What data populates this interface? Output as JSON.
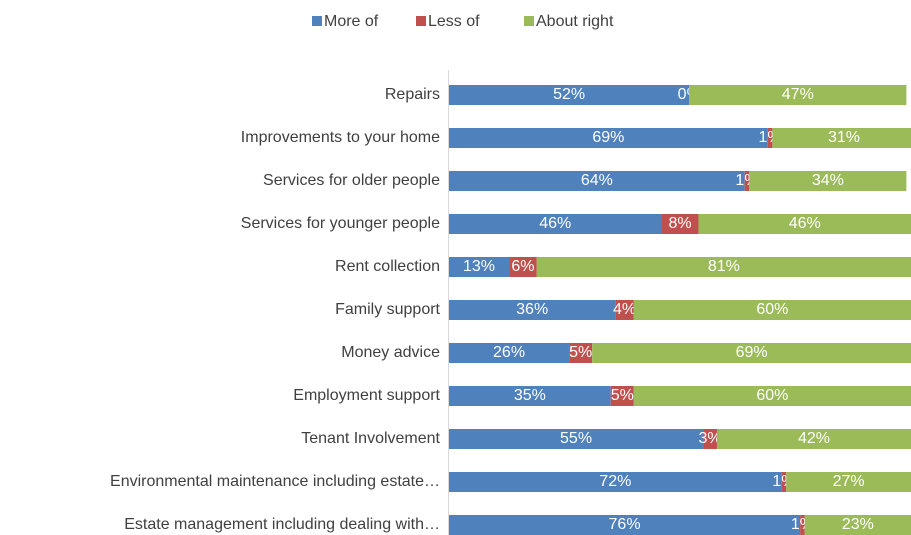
{
  "chart_data": {
    "type": "stacked_barh",
    "categories": [
      "Repairs",
      "Improvements to your home",
      "Services for older people",
      "Services for younger people",
      "Rent collection",
      "Family support",
      "Money advice",
      "Employment support",
      "Tenant Involvement",
      "Environmental maintenance including estate…",
      "Estate management including dealing with…"
    ],
    "series": [
      {
        "name": "More of",
        "color": "#4f81bd",
        "values": [
          52,
          69,
          64,
          46,
          13,
          36,
          26,
          35,
          55,
          72,
          76
        ],
        "value_labels": [
          "52%",
          "69%",
          "64%",
          "46%",
          "13%",
          "36%",
          "26%",
          "35%",
          "55%",
          "72%",
          "76%"
        ]
      },
      {
        "name": "Less of",
        "color": "#c0504d",
        "values": [
          0,
          1,
          1,
          8,
          6,
          4,
          5,
          5,
          3,
          1,
          1
        ],
        "value_labels": [
          "0%",
          "1%",
          "1%",
          "8%",
          "6%",
          "4%",
          "5%",
          "5%",
          "3%",
          "1%",
          "1%"
        ]
      },
      {
        "name": "About right",
        "color": "#9bbb59",
        "values": [
          47,
          31,
          34,
          46,
          81,
          60,
          69,
          60,
          42,
          27,
          23
        ],
        "value_labels": [
          "47%",
          "31%",
          "34%",
          "46%",
          "81%",
          "60%",
          "69%",
          "60%",
          "42%",
          "27%",
          "23%"
        ]
      }
    ],
    "xlim": [
      0,
      100
    ],
    "legend": "top"
  }
}
